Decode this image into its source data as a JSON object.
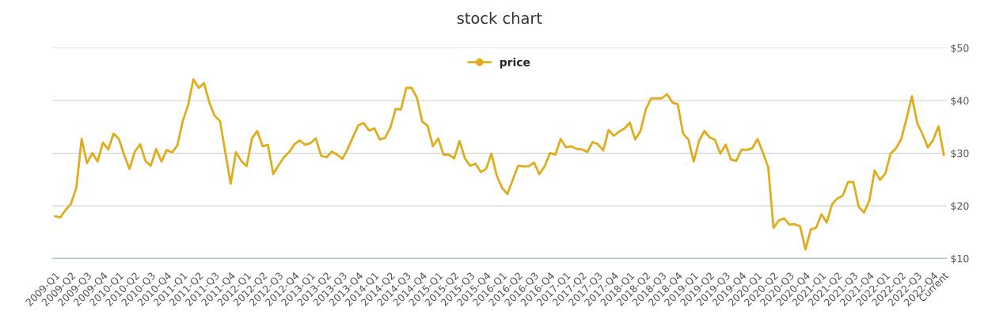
{
  "chart_data": {
    "type": "line",
    "title": "stock chart",
    "categories": [
      "2009-Q1",
      null,
      null,
      "2009-Q2",
      null,
      null,
      "2009-Q3",
      null,
      null,
      "2009-Q4",
      null,
      null,
      "2010-Q1",
      null,
      null,
      "2010-Q2",
      null,
      null,
      "2010-Q3",
      null,
      null,
      "2010-Q4",
      null,
      null,
      "2011-Q1",
      null,
      null,
      "2011-Q2",
      null,
      null,
      "2011-Q3",
      null,
      null,
      "2011-Q4",
      null,
      null,
      "2012-Q1",
      null,
      null,
      "2012-Q2",
      null,
      null,
      "2012-Q3",
      null,
      null,
      "2012-Q4",
      null,
      null,
      "2013-Q1",
      null,
      null,
      "2013-Q2",
      null,
      null,
      "2013-Q3",
      null,
      null,
      "2013-Q4",
      null,
      null,
      "2014-Q1",
      null,
      null,
      "2014-Q2",
      null,
      null,
      "2014-Q3",
      null,
      null,
      "2014-Q4",
      null,
      null,
      "2015-Q1",
      null,
      null,
      "2015-Q2",
      null,
      null,
      "2015-Q3",
      null,
      null,
      "2015-Q4",
      null,
      null,
      "2016-Q1",
      null,
      null,
      "2016-Q2",
      null,
      null,
      "2016-Q3",
      null,
      null,
      "2016-Q4",
      null,
      null,
      "2017-Q1",
      null,
      null,
      "2017-Q2",
      null,
      null,
      "2017-Q3",
      null,
      null,
      "2017-Q4",
      null,
      null,
      "2018-Q1",
      null,
      null,
      "2018-Q2",
      null,
      null,
      "2018-Q3",
      null,
      null,
      "2018-Q4",
      null,
      null,
      "2019-Q1",
      null,
      null,
      "2019-Q2",
      null,
      null,
      "2019-Q3",
      null,
      null,
      "2019-Q4",
      null,
      null,
      "2020-Q1",
      null,
      null,
      "2020-Q2",
      null,
      null,
      "2020-Q3",
      null,
      null,
      "2020-Q4",
      null,
      null,
      "2021-Q1",
      null,
      null,
      "2021-Q2",
      null,
      null,
      "2021-Q3",
      null,
      null,
      "2021-Q4",
      null,
      null,
      "2022-Q1",
      null,
      null,
      "2022-Q2",
      null,
      null,
      "2022-Q3",
      null,
      null,
      "2022-Q4",
      null,
      "Current"
    ],
    "series": [
      {
        "name": "price",
        "color": "#e0ac1c",
        "values": [
          18.0,
          17.8,
          19.2,
          20.4,
          23.4,
          32.7,
          28.1,
          30.0,
          28.4,
          32.0,
          30.7,
          33.7,
          32.7,
          29.6,
          27.0,
          30.3,
          31.7,
          28.5,
          27.6,
          30.8,
          28.4,
          30.6,
          30.1,
          31.5,
          36.1,
          39.1,
          44.0,
          42.4,
          43.3,
          39.6,
          37.1,
          36.1,
          30.1,
          24.2,
          30.2,
          28.5,
          27.5,
          32.8,
          34.2,
          31.3,
          31.6,
          26.0,
          27.7,
          29.2,
          30.2,
          31.7,
          32.4,
          31.6,
          31.9,
          32.8,
          29.5,
          29.2,
          30.3,
          29.7,
          28.9,
          30.8,
          33.1,
          35.3,
          35.7,
          34.3,
          34.7,
          32.6,
          32.9,
          34.8,
          38.4,
          38.3,
          42.4,
          42.4,
          40.5,
          36.0,
          35.2,
          31.3,
          32.8,
          29.7,
          29.7,
          29.0,
          32.3,
          29.0,
          27.6,
          28.0,
          26.4,
          27.0,
          29.9,
          25.7,
          23.4,
          22.2,
          24.9,
          27.6,
          27.5,
          27.5,
          28.2,
          26.0,
          27.5,
          30.0,
          29.7,
          32.7,
          31.1,
          31.3,
          30.8,
          30.7,
          30.2,
          32.1,
          31.7,
          30.5,
          34.4,
          33.3,
          34.1,
          34.7,
          35.8,
          32.6,
          34.2,
          38.3,
          40.4,
          40.4,
          40.4,
          41.2,
          39.6,
          39.3,
          33.7,
          32.6,
          28.4,
          32.3,
          34.2,
          33.0,
          32.5,
          29.9,
          31.6,
          28.8,
          28.5,
          30.7,
          30.6,
          30.9,
          32.7,
          30.1,
          27.3,
          15.8,
          17.2,
          17.6,
          16.4,
          16.5,
          16.1,
          11.7,
          15.5,
          15.8,
          18.4,
          16.8,
          20.3,
          21.4,
          21.9,
          24.5,
          24.5,
          19.8,
          18.7,
          21.0,
          26.7,
          24.9,
          26.1,
          29.9,
          30.9,
          32.7,
          36.6,
          40.8,
          35.7,
          33.6,
          31.1,
          32.5,
          35.1,
          29.6
        ]
      }
    ],
    "ylim": [
      10,
      50
    ],
    "yticks": [
      {
        "value": 10,
        "label": "$10"
      },
      {
        "value": 20,
        "label": "$20"
      },
      {
        "value": 30,
        "label": "$30"
      },
      {
        "value": 40,
        "label": "$40"
      },
      {
        "value": 50,
        "label": "$50"
      }
    ],
    "grid": "y",
    "legend": "top"
  }
}
